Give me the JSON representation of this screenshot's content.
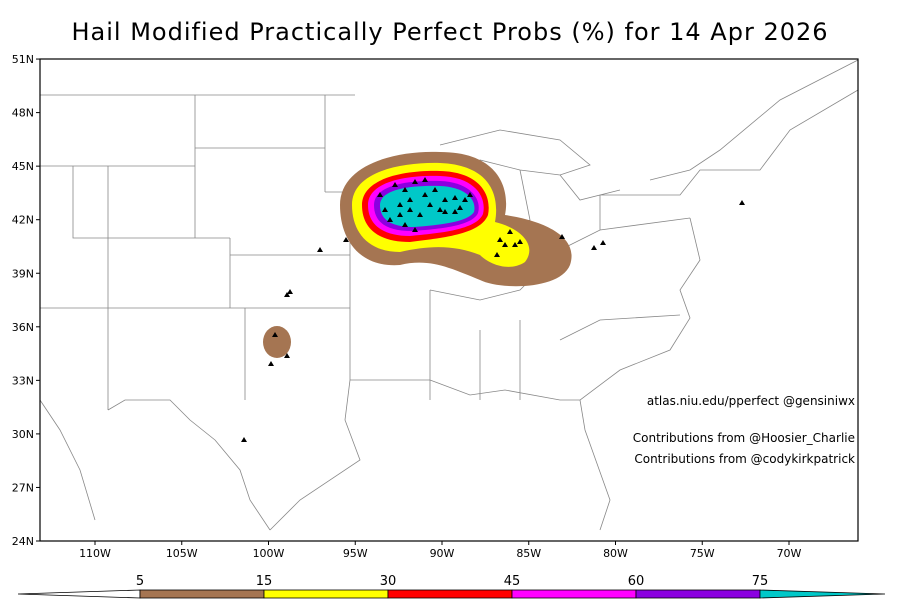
{
  "header": {
    "title": "Hail Modified Practically Perfect Probs (%) for 14 Apr 2026"
  },
  "map": {
    "lat_ticks": [
      {
        "value": 51,
        "label": "51N"
      },
      {
        "value": 48,
        "label": "48N"
      },
      {
        "value": 45,
        "label": "45N"
      },
      {
        "value": 42,
        "label": "42N"
      },
      {
        "value": 39,
        "label": "39N"
      },
      {
        "value": 36,
        "label": "36N"
      },
      {
        "value": 33,
        "label": "33N"
      },
      {
        "value": 30,
        "label": "30N"
      },
      {
        "value": 27,
        "label": "27N"
      },
      {
        "value": 24,
        "label": "24N"
      }
    ],
    "lon_ticks": [
      {
        "value": -110,
        "label": "110W"
      },
      {
        "value": -105,
        "label": "105W"
      },
      {
        "value": -100,
        "label": "100W"
      },
      {
        "value": -95,
        "label": "95W"
      },
      {
        "value": -90,
        "label": "90W"
      },
      {
        "value": -85,
        "label": "85W"
      },
      {
        "value": -80,
        "label": "80W"
      },
      {
        "value": -75,
        "label": "75W"
      },
      {
        "value": -70,
        "label": "70W"
      }
    ],
    "annotations": [
      "atlas.niu.edu/pperfect @gensiniwx",
      "Contributions from @Hoosier_Charlie",
      "Contributions from @codykirkpatrick"
    ]
  },
  "colorbar": {
    "levels": [
      5,
      15,
      30,
      45,
      60,
      75
    ],
    "colors": [
      "#a57552",
      "#ffff00",
      "#ff0000",
      "#ff00ff",
      "#8b00e0",
      "#00c8c8"
    ]
  }
}
